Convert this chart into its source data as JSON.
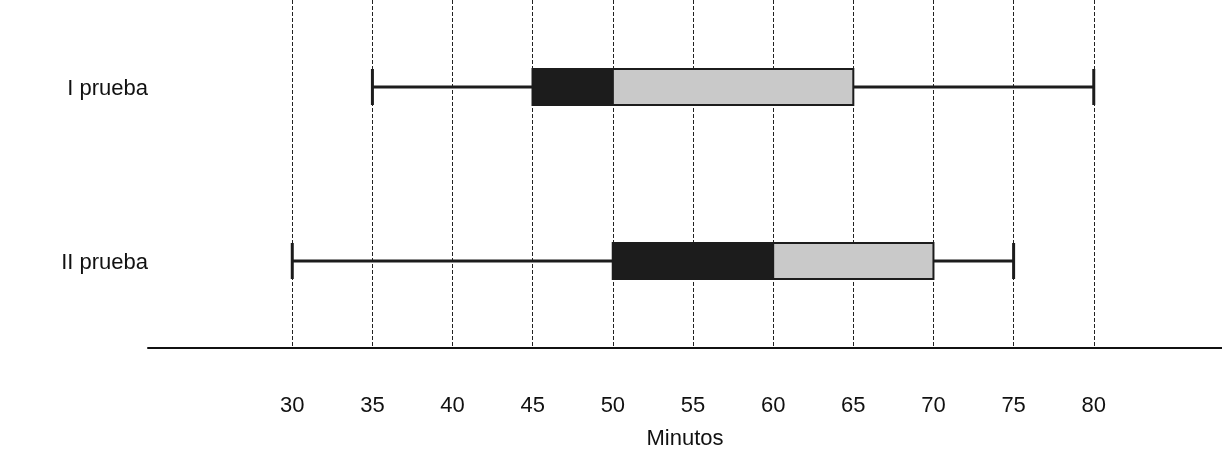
{
  "chart_data": {
    "type": "box",
    "orientation": "horizontal",
    "xlabel": "Minutos",
    "categories": [
      "I prueba",
      "II prueba"
    ],
    "boxes": [
      {
        "low": 35,
        "q1": 45,
        "median": 50,
        "q3": 65,
        "high": 80
      },
      {
        "low": 30,
        "q1": 50,
        "median": 60,
        "q3": 70,
        "high": 75
      }
    ],
    "color": "#1c1c1c",
    "colors": [
      "#c9c9c9",
      "#c9c9c9"
    ],
    "xlim": [
      21,
      88
    ],
    "xticks": [
      30,
      35,
      40,
      45,
      50,
      55,
      60,
      65,
      70,
      75,
      80
    ],
    "grid": "x"
  }
}
